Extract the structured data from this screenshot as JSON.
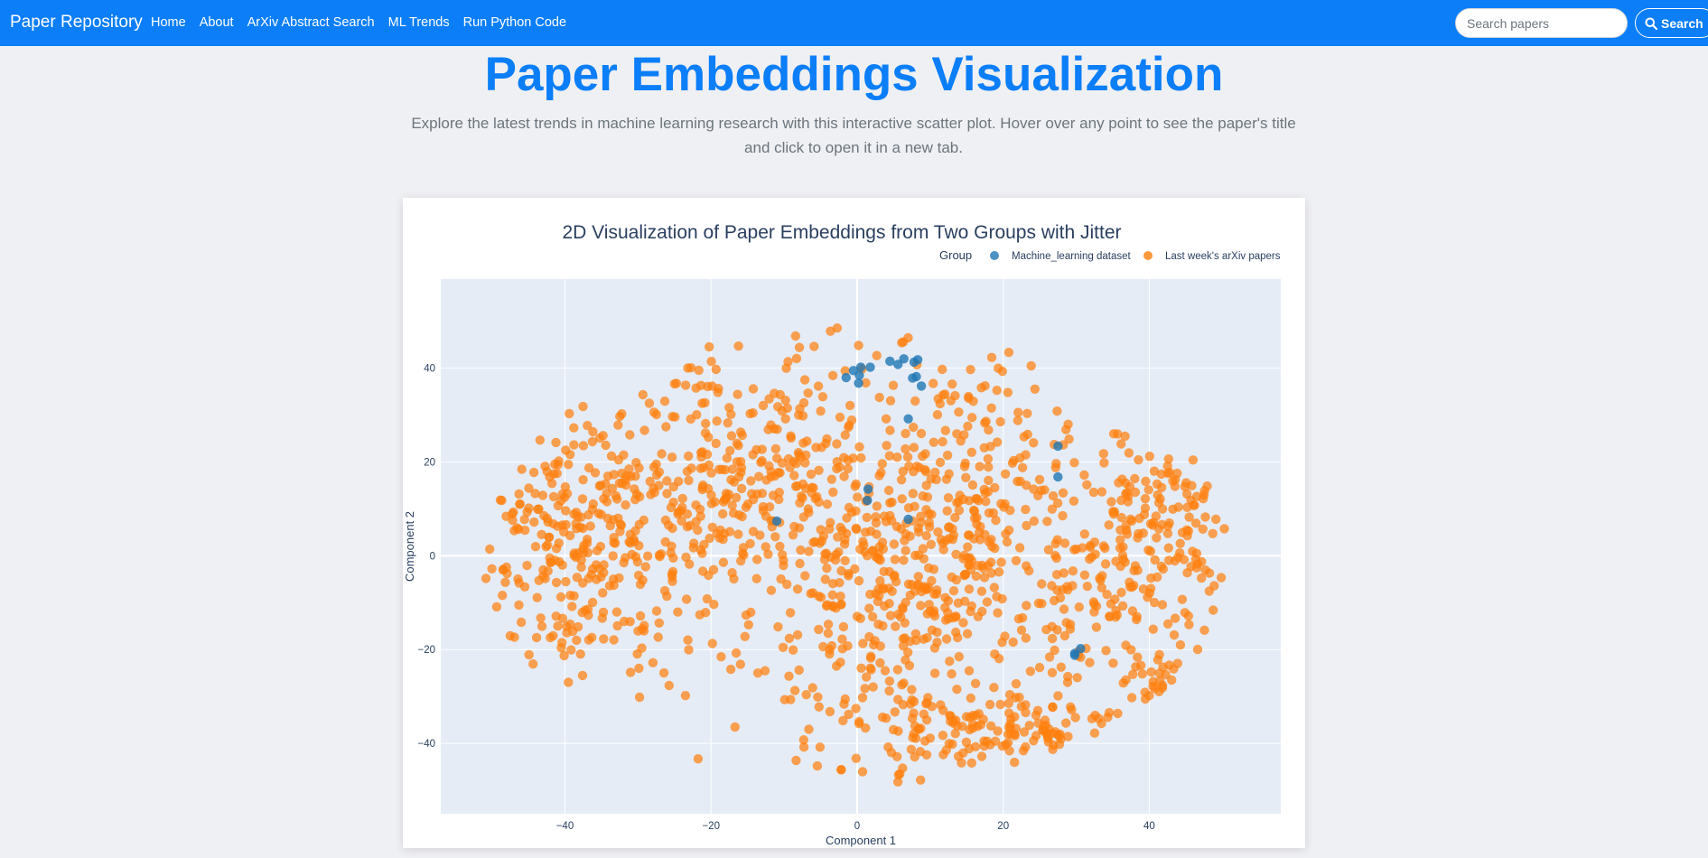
{
  "navbar": {
    "brand": "Paper Repository",
    "links": [
      "Home",
      "About",
      "ArXiv Abstract Search",
      "ML Trends",
      "Run Python Code"
    ],
    "search_placeholder": "Search papers",
    "search_button": "Search"
  },
  "header": {
    "title": "Paper Embeddings Visualization",
    "subtitle": "Explore the latest trends in machine learning research with this interactive scatter plot. Hover over any point to see the paper's title and click to open it in a new tab."
  },
  "colors": {
    "navbar": "#0b7ef8",
    "series_ml": "#1f77b4",
    "series_arxiv": "#ff7f0e",
    "plot_bg": "#e5ecf6"
  },
  "chart_data": {
    "type": "scatter",
    "title": "2D Visualization of Paper Embeddings from Two Groups with Jitter",
    "xlabel": "Component 1",
    "ylabel": "Component 2",
    "xlim": [
      -57,
      58
    ],
    "ylim": [
      -55,
      59
    ],
    "xticks": [
      -40,
      -20,
      0,
      20,
      40
    ],
    "yticks": [
      -40,
      -20,
      0,
      20,
      40
    ],
    "tick_labels_x": [
      "−40",
      "−20",
      "0",
      "20",
      "40"
    ],
    "tick_labels_y": [
      "−40",
      "−20",
      "0",
      "20",
      "40"
    ],
    "grid": true,
    "legend": {
      "title": "Group",
      "placement": "top-right",
      "entries": [
        "Machine_learning dataset",
        "Last week's arXiv papers"
      ]
    },
    "series": [
      {
        "name": "Machine_learning dataset",
        "color": "#1f77b4",
        "points": [
          [
            -0.5,
            39.5
          ],
          [
            0.3,
            38.5
          ],
          [
            0.5,
            40.2
          ],
          [
            -1.5,
            38.0
          ],
          [
            0.2,
            36.8
          ],
          [
            1.8,
            40.2
          ],
          [
            4.5,
            41.5
          ],
          [
            5.6,
            40.8
          ],
          [
            6.4,
            42.0
          ],
          [
            7.8,
            41.3
          ],
          [
            8.3,
            41.8
          ],
          [
            8.1,
            38.2
          ],
          [
            7.6,
            37.9
          ],
          [
            8.8,
            36.2
          ],
          [
            7.0,
            29.2
          ],
          [
            27.5,
            23.4
          ],
          [
            27.5,
            16.8
          ],
          [
            1.5,
            14.2
          ],
          [
            1.4,
            11.8
          ],
          [
            7.0,
            7.8
          ],
          [
            -11.0,
            7.4
          ],
          [
            30.6,
            -19.8
          ],
          [
            29.8,
            -20.8
          ],
          [
            29.8,
            -21.2
          ]
        ]
      },
      {
        "name": "Last week's arXiv papers",
        "color": "#ff7f0e",
        "count": 1700,
        "clusters": [
          {
            "cx": -38,
            "cy": 2,
            "sx": 7.5,
            "sy": 14,
            "n": 300
          },
          {
            "cx": -18,
            "cy": 18,
            "sx": 10,
            "sy": 16,
            "n": 320
          },
          {
            "cx": 2,
            "cy": -8,
            "sx": 10,
            "sy": 20,
            "n": 320
          },
          {
            "cx": 15,
            "cy": 8,
            "sx": 8,
            "sy": 20,
            "n": 300
          },
          {
            "cx": 42,
            "cy": 5,
            "sx": 6,
            "sy": 12,
            "n": 180
          },
          {
            "cx": 32,
            "cy": -8,
            "sx": 5,
            "sy": 9,
            "n": 80
          },
          {
            "cx": 43,
            "cy": -28,
            "sx": 3.2,
            "sy": 3,
            "n": 60
          },
          {
            "cx": 27,
            "cy": -36,
            "sx": 4.5,
            "sy": 3.5,
            "n": 70
          },
          {
            "cx": 13,
            "cy": -37,
            "sx": 6,
            "sy": 4,
            "n": 70
          }
        ]
      }
    ]
  }
}
